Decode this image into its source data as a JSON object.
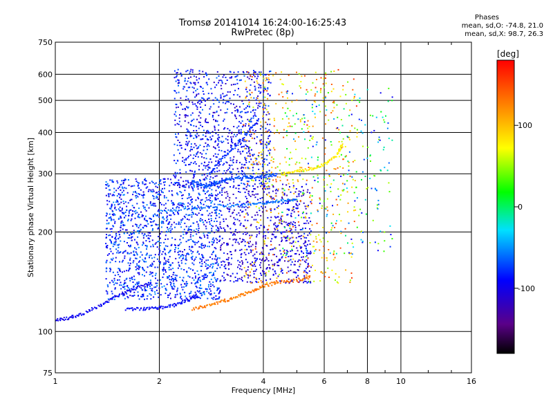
{
  "chart_data": {
    "type": "scatter",
    "title": "Tromsø 20141014 16:24:00-16:25:43",
    "subtitle": "RwPretec (8p)",
    "xlabel": "Frequency [MHz]",
    "ylabel": "Stationary phase Virtual Height [km]",
    "xscale": "log",
    "yscale": "log",
    "xlim": [
      1,
      16
    ],
    "ylim": [
      75,
      750
    ],
    "xticks": [
      "1",
      "2",
      "4",
      "6",
      "8",
      "10",
      "16"
    ],
    "yticks": [
      "75",
      "100",
      "200",
      "300",
      "400",
      "500",
      "600",
      "750"
    ],
    "grid": true,
    "colorbar": {
      "label": "[deg]",
      "ticks": [
        "100",
        "0",
        "-100"
      ],
      "range": [
        -180,
        180
      ],
      "colormap": "rainbow"
    },
    "phase_stats": {
      "heading": "Phases",
      "o_line": "mean, sd,O: -74.8, 21.0",
      "x_line": "mean, sd,X:  98.7, 26.3"
    },
    "traces": [
      {
        "x": [
          1.0,
          1.1,
          1.2,
          1.35,
          1.5,
          1.7,
          1.9
        ],
        "y": [
          108,
          110,
          113,
          120,
          128,
          135,
          140
        ],
        "phase": -95
      },
      {
        "x": [
          1.6,
          1.8,
          2.0,
          2.2,
          2.4,
          2.6
        ],
        "y": [
          117,
          117,
          118,
          120,
          124,
          128
        ],
        "phase": -90
      },
      {
        "x": [
          2.5,
          2.8,
          3.1,
          3.4,
          3.7,
          4.0,
          4.4,
          5.0,
          5.5
        ],
        "y": [
          117,
          120,
          124,
          128,
          132,
          137,
          141,
          143,
          146
        ],
        "phase": 130
      },
      {
        "x": [
          2.5,
          2.7,
          2.9,
          3.1,
          3.4,
          3.7,
          4.0,
          4.4
        ],
        "y": [
          285,
          275,
          280,
          288,
          292,
          293,
          295,
          298
        ],
        "phase": -70
      },
      {
        "x": [
          4.5,
          5.0,
          5.5,
          6.0,
          6.5,
          6.8
        ],
        "y": [
          300,
          305,
          310,
          320,
          340,
          370
        ],
        "phase": 80
      },
      {
        "x": [
          2.8,
          3.0,
          3.3,
          3.6,
          3.9
        ],
        "y": [
          300,
          330,
          360,
          400,
          440
        ],
        "phase": -80
      },
      {
        "x": [
          2.0,
          2.5,
          3.0,
          3.5,
          4.0,
          4.5,
          5.0
        ],
        "y": [
          230,
          235,
          240,
          240,
          245,
          248,
          250
        ],
        "phase": -60
      }
    ],
    "clouds": [
      {
        "x": [
          1.4,
          3.0
        ],
        "y": [
          125,
          290
        ],
        "phase": [
          -110,
          -50
        ],
        "count": 1500
      },
      {
        "x": [
          2.2,
          4.2
        ],
        "y": [
          270,
          620
        ],
        "phase": [
          -120,
          -60
        ],
        "count": 900
      },
      {
        "x": [
          3.0,
          5.5
        ],
        "y": [
          140,
          280
        ],
        "phase": [
          -130,
          -80
        ],
        "count": 700
      },
      {
        "x": [
          3.5,
          7.5
        ],
        "y": [
          140,
          620
        ],
        "phase": [
          40,
          160
        ],
        "count": 500
      },
      {
        "x": [
          4.5,
          9.5
        ],
        "y": [
          170,
          550
        ],
        "phase": [
          -100,
          60
        ],
        "count": 250
      }
    ]
  }
}
